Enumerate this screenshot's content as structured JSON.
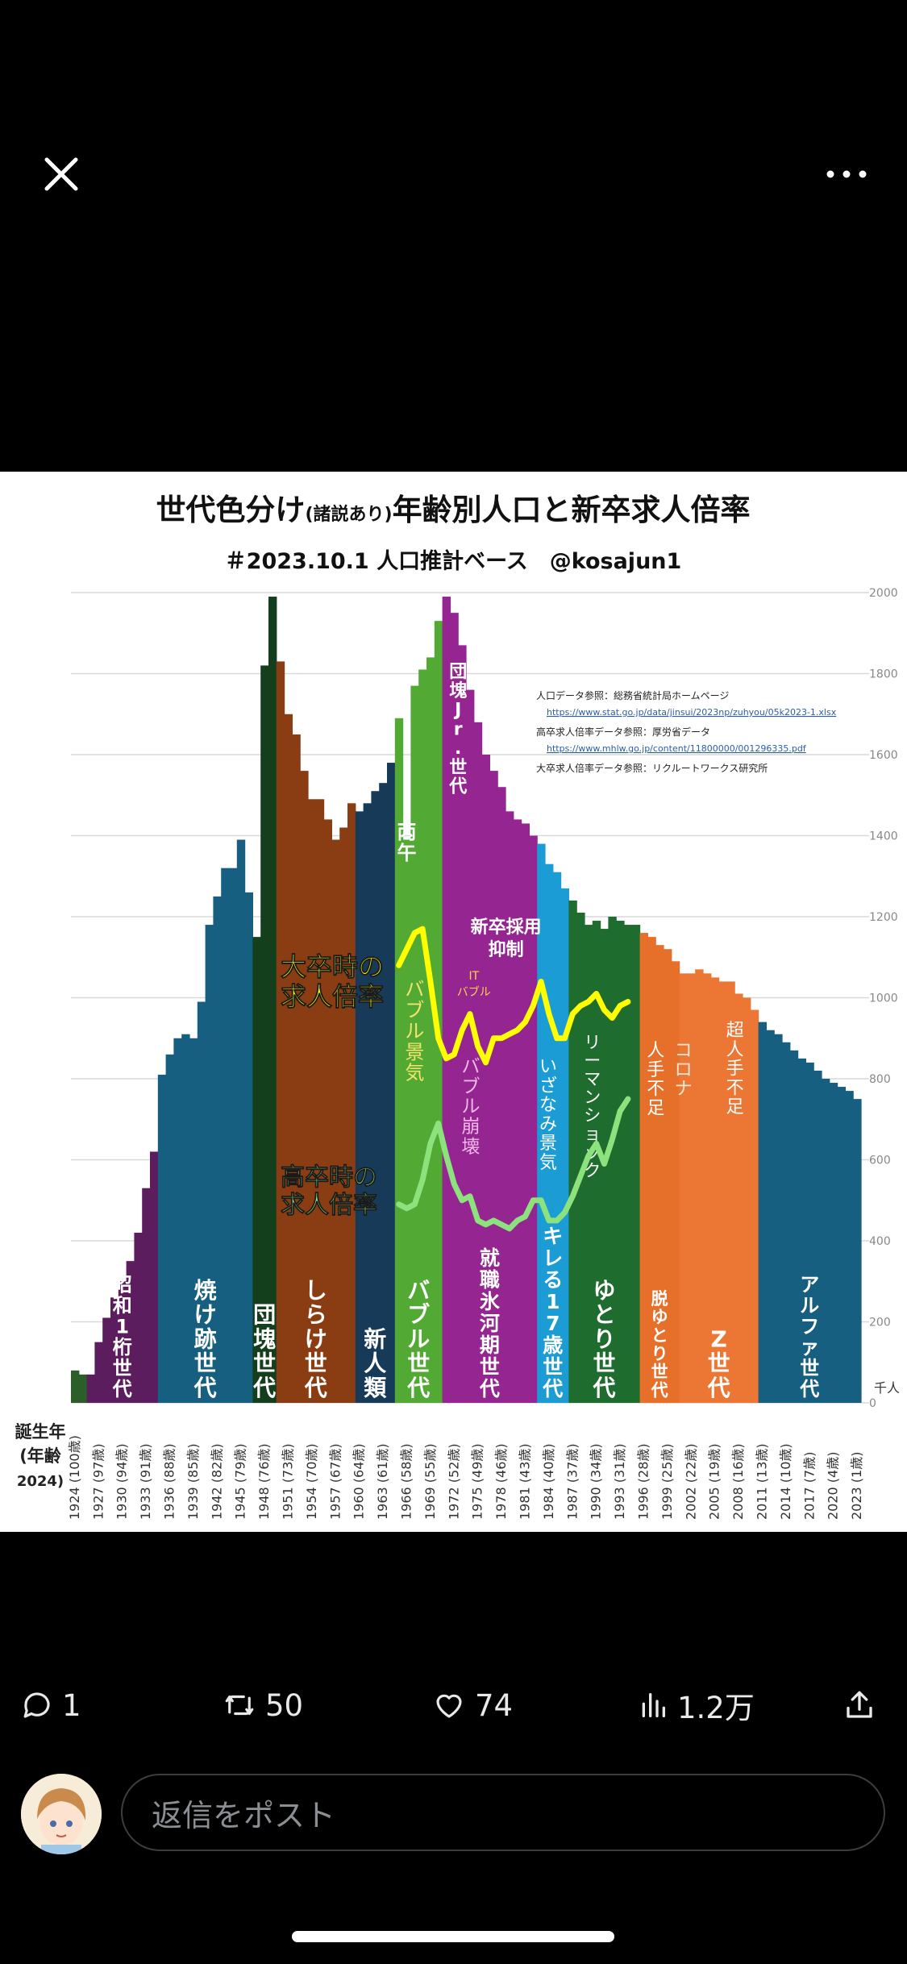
{
  "topbar": {
    "close_icon": "close-icon",
    "more_icon": "more-icon"
  },
  "chart_data": {
    "type": "bar",
    "title": "世代色分け",
    "title_note": "(諸説あり)",
    "title_rest": "年齢別人口と新卒求人倍率",
    "subtitle": "＃2023.10.1 人口推計ベース　@kosajun1",
    "ylabel_unit": "千人",
    "ylim": [
      0,
      2000
    ],
    "yticks": [
      0,
      200,
      400,
      600,
      800,
      1000,
      1200,
      1400,
      1600,
      1800,
      2000
    ],
    "birth_label": [
      "誕生年",
      "(年齢",
      "2024)"
    ],
    "x_start": 1924,
    "x_end": 2023,
    "xticks": [
      {
        "year": 1924,
        "age": "100歳"
      },
      {
        "year": 1927,
        "age": "97歳"
      },
      {
        "year": 1930,
        "age": "94歳"
      },
      {
        "year": 1933,
        "age": "91歳"
      },
      {
        "year": 1936,
        "age": "88歳"
      },
      {
        "year": 1939,
        "age": "85歳"
      },
      {
        "year": 1942,
        "age": "82歳"
      },
      {
        "year": 1945,
        "age": "79歳"
      },
      {
        "year": 1948,
        "age": "76歳"
      },
      {
        "year": 1951,
        "age": "73歳"
      },
      {
        "year": 1954,
        "age": "70歳"
      },
      {
        "year": 1957,
        "age": "67歳"
      },
      {
        "year": 1960,
        "age": "64歳"
      },
      {
        "year": 1963,
        "age": "61歳"
      },
      {
        "year": 1966,
        "age": "58歳"
      },
      {
        "year": 1969,
        "age": "55歳"
      },
      {
        "year": 1972,
        "age": "52歳"
      },
      {
        "year": 1975,
        "age": "49歳"
      },
      {
        "year": 1978,
        "age": "46歳"
      },
      {
        "year": 1981,
        "age": "43歳"
      },
      {
        "year": 1984,
        "age": "40歳"
      },
      {
        "year": 1987,
        "age": "37歳"
      },
      {
        "year": 1990,
        "age": "34歳"
      },
      {
        "year": 1993,
        "age": "31歳"
      },
      {
        "year": 1996,
        "age": "28歳"
      },
      {
        "year": 1999,
        "age": "25歳"
      },
      {
        "year": 2002,
        "age": "22歳"
      },
      {
        "year": 2005,
        "age": "19歳"
      },
      {
        "year": 2008,
        "age": "16歳"
      },
      {
        "year": 2011,
        "age": "13歳"
      },
      {
        "year": 2014,
        "age": "10歳"
      },
      {
        "year": 2017,
        "age": "7歳"
      },
      {
        "year": 2020,
        "age": "4歳"
      },
      {
        "year": 2023,
        "age": "1歳"
      }
    ],
    "population": [
      80,
      70,
      70,
      150,
      210,
      260,
      300,
      350,
      420,
      530,
      620,
      810,
      860,
      900,
      910,
      900,
      990,
      1180,
      1250,
      1320,
      1320,
      1390,
      1260,
      1150,
      1820,
      1990,
      1830,
      1700,
      1650,
      1560,
      1490,
      1490,
      1440,
      1390,
      1420,
      1480,
      1460,
      1480,
      1510,
      1530,
      1580,
      1690,
      1390,
      1770,
      1810,
      1840,
      1930,
      1990,
      1950,
      1870,
      1760,
      1680,
      1600,
      1560,
      1520,
      1460,
      1440,
      1430,
      1400,
      1380,
      1330,
      1310,
      1270,
      1240,
      1210,
      1180,
      1190,
      1170,
      1200,
      1190,
      1180,
      1180,
      1160,
      1150,
      1130,
      1120,
      1090,
      1060,
      1060,
      1070,
      1060,
      1050,
      1040,
      1040,
      1010,
      1000,
      970,
      940,
      920,
      910,
      890,
      870,
      850,
      840,
      820,
      800,
      790,
      780,
      770,
      750
    ],
    "generations": [
      {
        "name": "昭和1桁世代",
        "start": 1926,
        "end": 1934,
        "color": "#5c1d5e"
      },
      {
        "name": "焼け跡世代",
        "start": 1935,
        "end": 1946,
        "color": "#175f80"
      },
      {
        "name": "団塊世代",
        "start": 1947,
        "end": 1949,
        "color": "#133f1d"
      },
      {
        "name": "しらけ世代",
        "start": 1950,
        "end": 1959,
        "color": "#8a3d12"
      },
      {
        "name": "新人類",
        "start": 1960,
        "end": 1964,
        "color": "#173a58"
      },
      {
        "name": "バブル世代",
        "start": 1965,
        "end": 1970,
        "color": "#52a933"
      },
      {
        "name": "就職氷河期世代",
        "start": 1971,
        "end": 1982,
        "color": "#952590"
      },
      {
        "name": "キレる17歳世代",
        "start": 1983,
        "end": 1986,
        "color": "#1b9cd4"
      },
      {
        "name": "ゆとり世代",
        "start": 1987,
        "end": 1995,
        "color": "#1e6c2e"
      },
      {
        "name": "脱ゆとり世代",
        "start": 1996,
        "end": 2000,
        "color": "#e66f2a"
      },
      {
        "name": "Z世代",
        "start": 2001,
        "end": 2010,
        "color": "#ec7734"
      },
      {
        "name": "アルファ世代",
        "start": 2011,
        "end": 2023,
        "color": "#175f80"
      }
    ],
    "labels": {
      "hinoeuma": "丙午",
      "dankai_jr": "団塊Jr.世代",
      "shinsotsu": "新卒採用抑制",
      "it_bubble": "ITバブル",
      "bubble_keiki": "バブル景気",
      "bubble_houkai": "バブル崩壊",
      "izanami": "いざなみ景気",
      "lehman": "リーマンショック",
      "hitode_busoku": "人手不足",
      "corona": "コロナ",
      "chou_hitode": "超人手不足",
      "daisotsu": "大卒時の求人倍率",
      "kousotsu": "高卒時の求人倍率"
    },
    "sources": [
      "人口データ参照：総務省統計局ホームページ",
      "https://www.stat.go.jp/data/jinsui/2023np/zuhyou/05k2023-1.xlsx",
      "高卒求人倍率データ参照：厚労省データ",
      "https://www.mhlw.go.jp/content/11800000/001296335.pdf",
      "大卒求人倍率データ参照：リクルートワークス研究所"
    ],
    "university_ratio_line": {
      "color": "#ffff00",
      "points": [
        [
          1965,
          1080
        ],
        [
          1966,
          1120
        ],
        [
          1967,
          1160
        ],
        [
          1968,
          1170
        ],
        [
          1969,
          1040
        ],
        [
          1970,
          900
        ],
        [
          1971,
          850
        ],
        [
          1972,
          860
        ],
        [
          1973,
          920
        ],
        [
          1974,
          960
        ],
        [
          1975,
          880
        ],
        [
          1976,
          840
        ],
        [
          1977,
          900
        ],
        [
          1978,
          900
        ],
        [
          1979,
          910
        ],
        [
          1980,
          920
        ],
        [
          1981,
          940
        ],
        [
          1982,
          980
        ],
        [
          1983,
          1040
        ],
        [
          1984,
          960
        ],
        [
          1985,
          900
        ],
        [
          1986,
          900
        ],
        [
          1987,
          960
        ],
        [
          1988,
          980
        ],
        [
          1989,
          990
        ],
        [
          1990,
          1010
        ],
        [
          1991,
          970
        ],
        [
          1992,
          950
        ],
        [
          1993,
          980
        ],
        [
          1994,
          990
        ]
      ]
    },
    "highschool_ratio_line": {
      "color": "#8ce27c",
      "points": [
        [
          1965,
          490
        ],
        [
          1966,
          480
        ],
        [
          1967,
          490
        ],
        [
          1968,
          550
        ],
        [
          1969,
          640
        ],
        [
          1970,
          690
        ],
        [
          1971,
          610
        ],
        [
          1972,
          540
        ],
        [
          1973,
          500
        ],
        [
          1974,
          510
        ],
        [
          1975,
          450
        ],
        [
          1976,
          440
        ],
        [
          1977,
          450
        ],
        [
          1978,
          440
        ],
        [
          1979,
          430
        ],
        [
          1980,
          450
        ],
        [
          1981,
          460
        ],
        [
          1982,
          500
        ],
        [
          1983,
          500
        ],
        [
          1984,
          450
        ],
        [
          1985,
          450
        ],
        [
          1986,
          470
        ],
        [
          1987,
          510
        ],
        [
          1988,
          560
        ],
        [
          1989,
          610
        ],
        [
          1990,
          640
        ],
        [
          1991,
          590
        ],
        [
          1992,
          650
        ],
        [
          1993,
          720
        ],
        [
          1994,
          750
        ]
      ]
    }
  },
  "actions": {
    "reply_count": "1",
    "repost_count": "50",
    "like_count": "74",
    "view_count": "1.2万",
    "icons": [
      "reply-icon",
      "repost-icon",
      "like-icon",
      "views-icon",
      "share-icon"
    ]
  },
  "reply": {
    "placeholder": "返信をポスト"
  }
}
